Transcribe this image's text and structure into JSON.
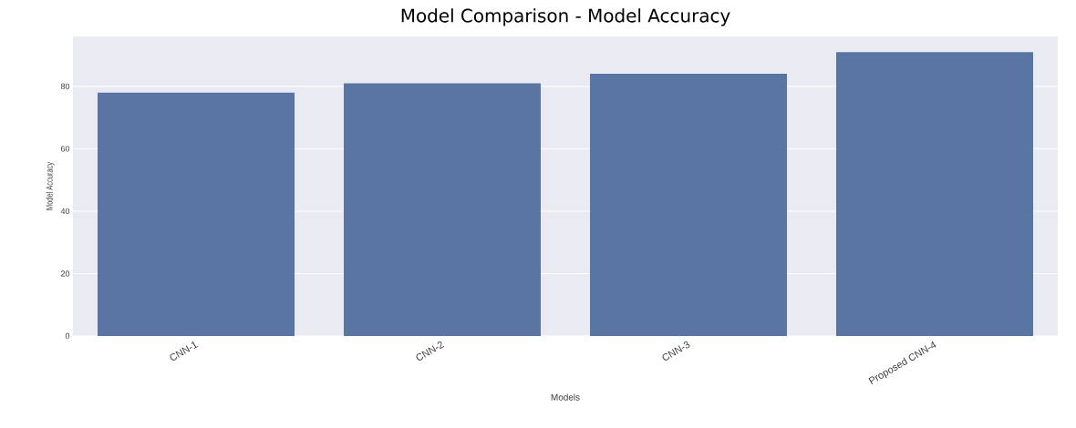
{
  "chart_data": {
    "type": "bar",
    "title": "Model Comparison - Model Accuracy",
    "xlabel": "Models",
    "ylabel": "Model Accuracy",
    "categories": [
      "CNN-1",
      "CNN-2",
      "CNN-3",
      "Proposed CNN-4"
    ],
    "values": [
      78,
      81,
      84,
      91
    ],
    "color": "#5975a4",
    "ylim": [
      0,
      96
    ],
    "yticks": [
      0,
      20,
      40,
      60,
      80
    ],
    "grid": "y"
  }
}
